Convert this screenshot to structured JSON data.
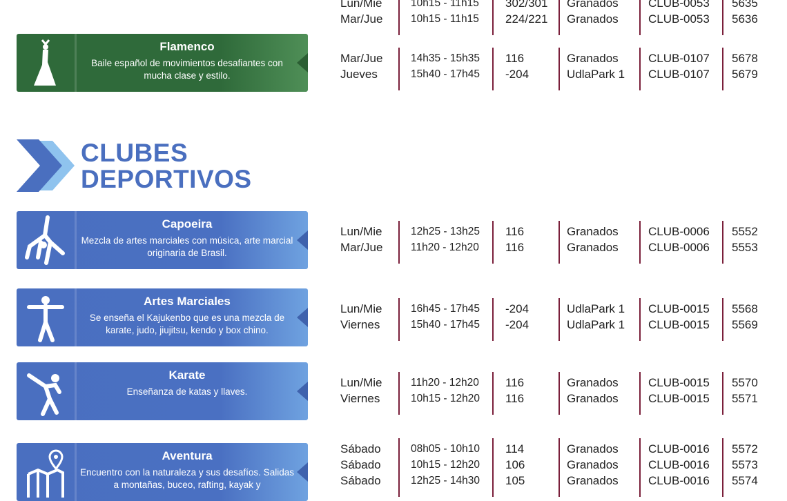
{
  "section_heading": {
    "line1": "CLUBES",
    "line2": "DEPORTIVOS",
    "color": "#4a6fbf",
    "icon": "chevron-arrow-icon"
  },
  "colors": {
    "green_card": "#2f6a3a",
    "blue_card": "#4a6fc0",
    "separator": "#7a1f3a"
  },
  "blocks": [
    {
      "card": null,
      "rows": [
        {
          "day": "Lun/Mie",
          "time": "10h15 - 11h15",
          "room": "302/301",
          "campus": "Granados",
          "code": "CLUB-0053",
          "nrc": "5635"
        },
        {
          "day": "Mar/Jue",
          "time": "10h15 - 11h15",
          "room": "224/221",
          "campus": "Granados",
          "code": "CLUB-0053",
          "nrc": "5636"
        }
      ]
    },
    {
      "card": {
        "title": "Flamenco",
        "description": "Baile español de movimientos desafiantes con mucha clase y estilo.",
        "color": "green",
        "icon": "flamenco-dancer-icon"
      },
      "rows": [
        {
          "day": "Mar/Jue",
          "time": "14h35 - 15h35",
          "room": "116",
          "campus": "Granados",
          "code": "CLUB-0107",
          "nrc": "5678"
        },
        {
          "day": "Jueves",
          "time": "15h40 - 17h45",
          "room": "-204",
          "campus": "UdlaPark 1",
          "code": "CLUB-0107",
          "nrc": "5679"
        }
      ]
    },
    {
      "card": {
        "title": "Capoeira",
        "description": "Mezcla de artes marciales con música, arte marcial originaria de Brasil.",
        "color": "blue",
        "icon": "capoeira-icon"
      },
      "rows": [
        {
          "day": "Lun/Mie",
          "time": "12h25 - 13h25",
          "room": "116",
          "campus": "Granados",
          "code": "CLUB-0006",
          "nrc": "5552"
        },
        {
          "day": "Mar/Jue",
          "time": "11h20 - 12h20",
          "room": "116",
          "campus": "Granados",
          "code": "CLUB-0006",
          "nrc": "5553"
        }
      ]
    },
    {
      "card": {
        "title": "Artes Marciales",
        "description": "Se enseña el Kajukenbo que es una mezcla de karate, judo, jiujitsu, kendo y box chino.",
        "color": "blue",
        "icon": "martial-arts-icon"
      },
      "rows": [
        {
          "day": "Lun/Mie",
          "time": "16h45 - 17h45",
          "room": "-204",
          "campus": "UdlaPark 1",
          "code": "CLUB-0015",
          "nrc": "5568"
        },
        {
          "day": "Viernes",
          "time": "15h40 - 17h45",
          "room": "-204",
          "campus": "UdlaPark 1",
          "code": "CLUB-0015",
          "nrc": "5569"
        }
      ]
    },
    {
      "card": {
        "title": "Karate",
        "description": "Enseñanza de katas y llaves.",
        "color": "blue",
        "icon": "karate-kick-icon"
      },
      "rows": [
        {
          "day": "Lun/Mie",
          "time": "11h20 - 12h20",
          "room": "116",
          "campus": "Granados",
          "code": "CLUB-0015",
          "nrc": "5570"
        },
        {
          "day": "Viernes",
          "time": "10h15 - 12h20",
          "room": "116",
          "campus": "Granados",
          "code": "CLUB-0015",
          "nrc": "5571"
        }
      ]
    },
    {
      "card": {
        "title": "Aventura",
        "description": "Encuentro con la naturaleza y sus desafíos. Salidas a montañas, buceo, rafting, kayak y",
        "color": "blue",
        "icon": "map-pin-icon"
      },
      "rows": [
        {
          "day": "Sábado",
          "time": "08h05 - 10h10",
          "room": "114",
          "campus": "Granados",
          "code": "CLUB-0016",
          "nrc": "5572"
        },
        {
          "day": "Sábado",
          "time": "10h15 - 12h20",
          "room": "106",
          "campus": "Granados",
          "code": "CLUB-0016",
          "nrc": "5573"
        },
        {
          "day": "Sábado",
          "time": "12h25 - 14h30",
          "room": "105",
          "campus": "Granados",
          "code": "CLUB-0016",
          "nrc": "5574"
        }
      ]
    }
  ]
}
